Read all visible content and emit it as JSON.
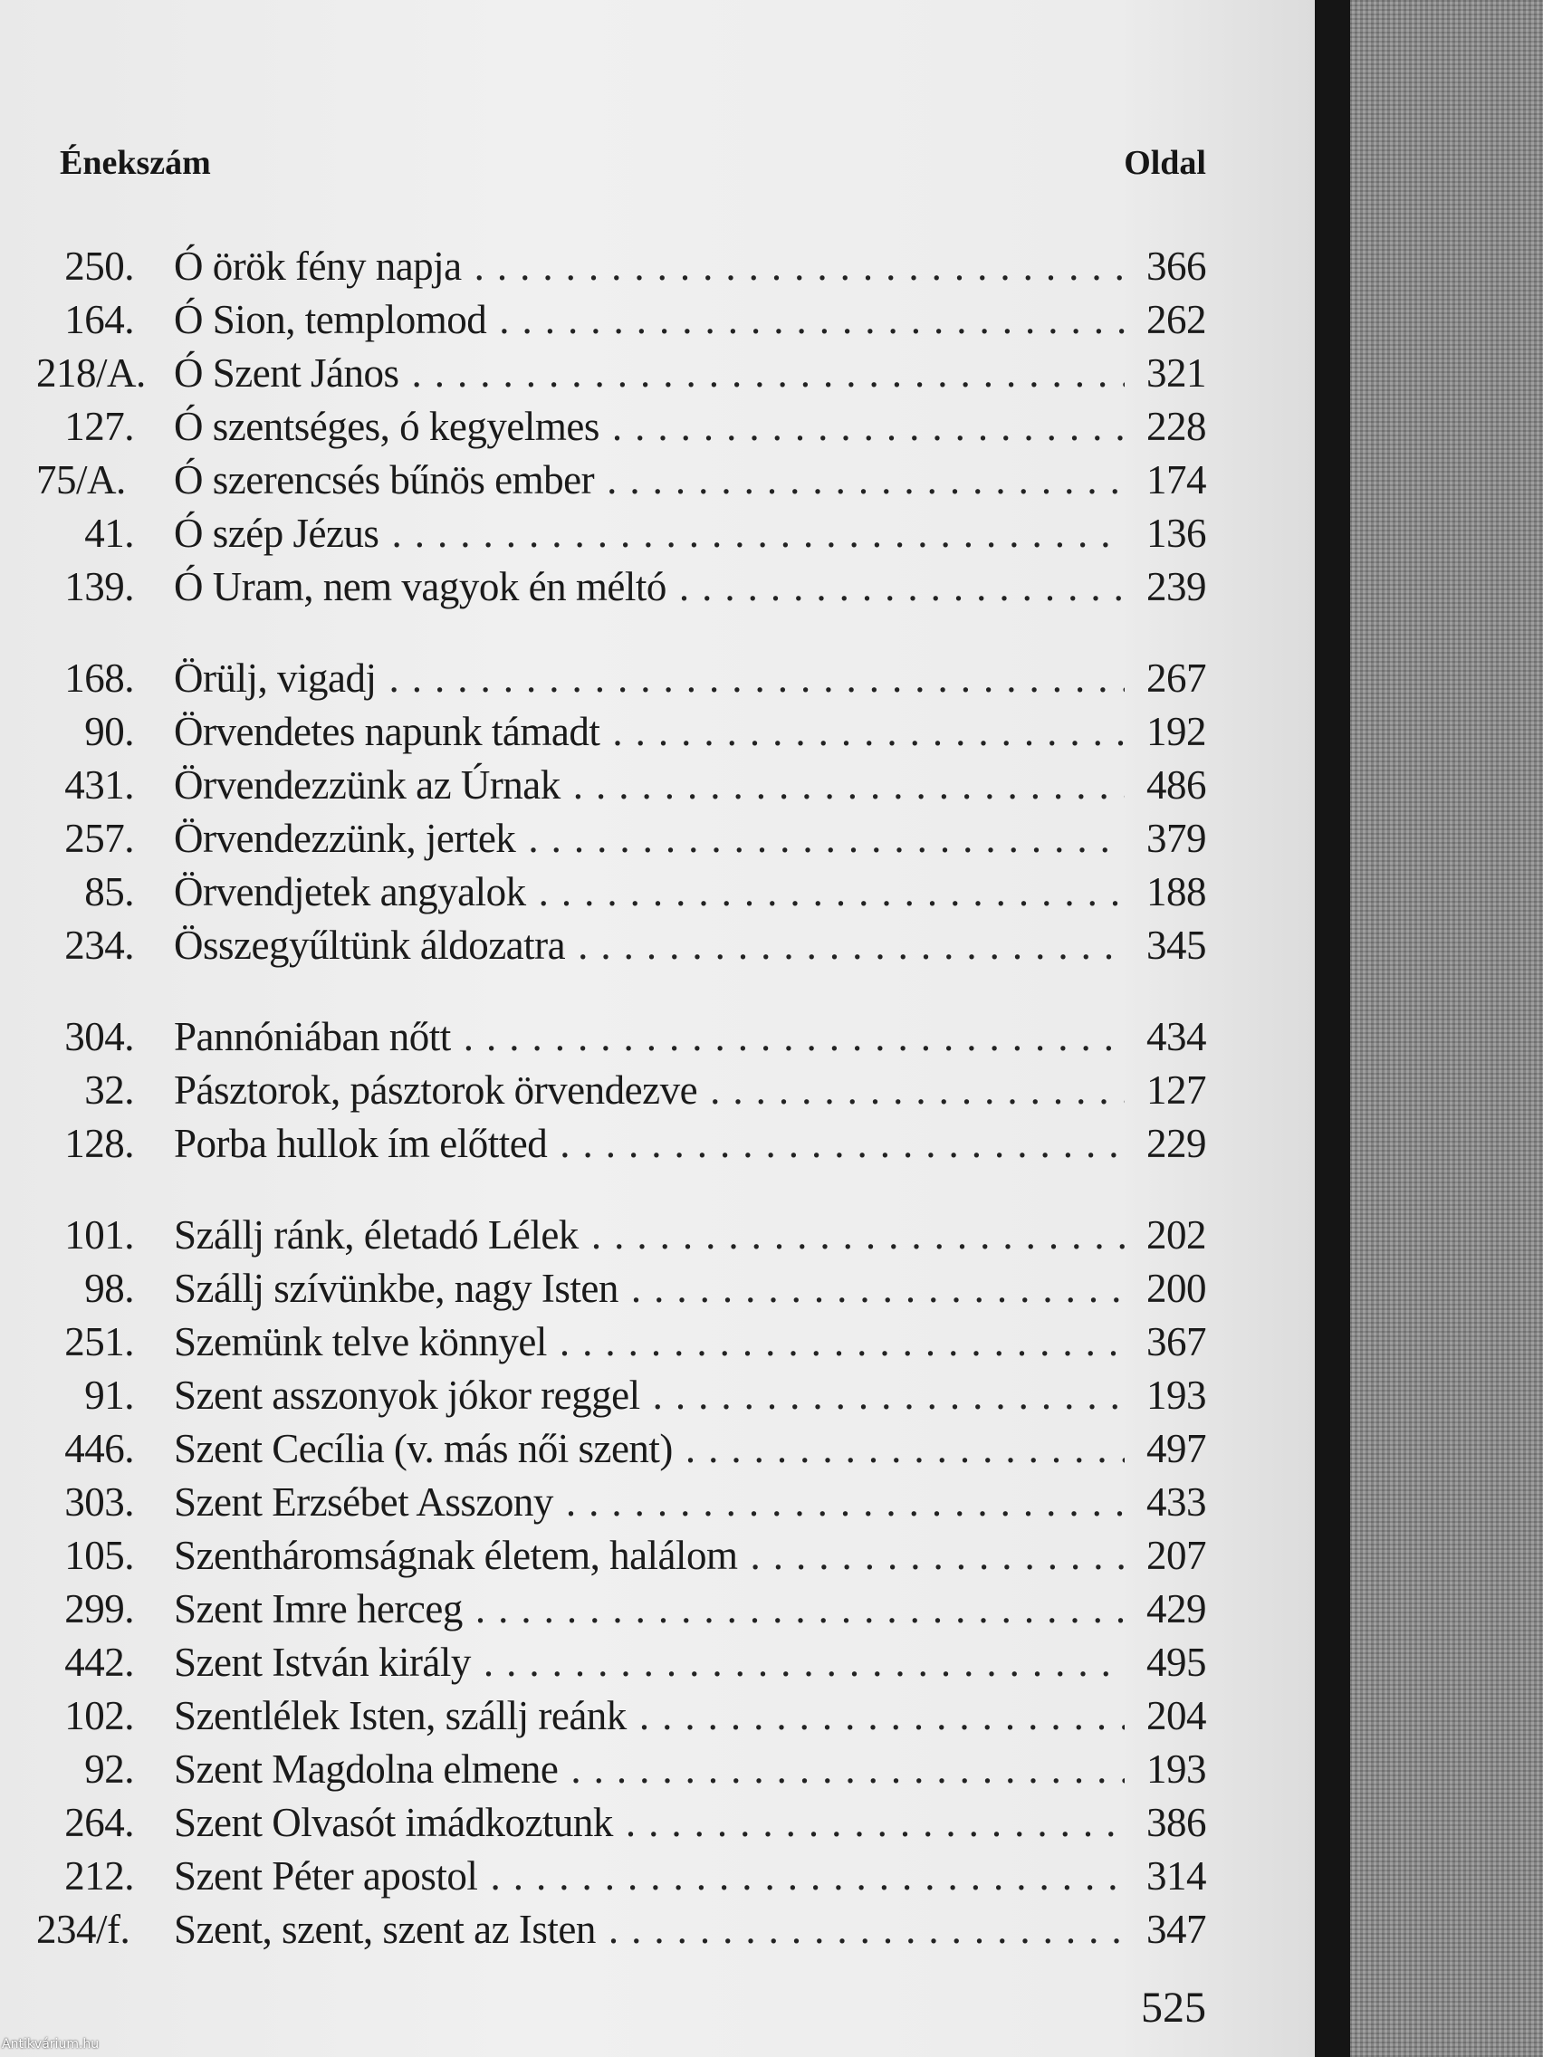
{
  "header": {
    "left": "Énekszám",
    "right": "Oldal"
  },
  "groups": [
    [
      {
        "num": "250.",
        "title": "Ó örök fény napja",
        "page": "366"
      },
      {
        "num": "164.",
        "title": "Ó Sion, templomod",
        "page": "262"
      },
      {
        "num": "218/A.",
        "title": "Ó Szent János",
        "page": "321"
      },
      {
        "num": "127.",
        "title": "Ó szentséges, ó kegyelmes",
        "page": "228"
      },
      {
        "num": "75/A.",
        "title": "Ó szerencsés bűnös ember",
        "page": "174"
      },
      {
        "num": "41.",
        "title": "Ó szép Jézus",
        "page": "136"
      },
      {
        "num": "139.",
        "title": "Ó Uram, nem vagyok én méltó",
        "page": "239"
      }
    ],
    [
      {
        "num": "168.",
        "title": "Örülj, vigadj",
        "page": "267"
      },
      {
        "num": "90.",
        "title": "Örvendetes napunk támadt",
        "page": "192"
      },
      {
        "num": "431.",
        "title": "Örvendezzünk az Úrnak",
        "page": "486"
      },
      {
        "num": "257.",
        "title": "Örvendezzünk, jertek",
        "page": "379"
      },
      {
        "num": "85.",
        "title": "Örvendjetek angyalok",
        "page": "188"
      },
      {
        "num": "234.",
        "title": "Összegyűltünk áldozatra",
        "page": "345"
      }
    ],
    [
      {
        "num": "304.",
        "title": "Pannóniában nőtt",
        "page": "434"
      },
      {
        "num": "32.",
        "title": "Pásztorok, pásztorok örvendezve",
        "page": "127"
      },
      {
        "num": "128.",
        "title": "Porba hullok ím előtted",
        "page": "229"
      }
    ],
    [
      {
        "num": "101.",
        "title": "Szállj ránk, életadó Lélek",
        "page": "202"
      },
      {
        "num": "98.",
        "title": "Szállj szívünkbe, nagy Isten",
        "page": "200"
      },
      {
        "num": "251.",
        "title": "Szemünk telve könnyel",
        "page": "367"
      },
      {
        "num": "91.",
        "title": "Szent asszonyok jókor reggel",
        "page": "193"
      },
      {
        "num": "446.",
        "title": "Szent Cecília (v. más női szent)",
        "page": "497"
      },
      {
        "num": "303.",
        "title": "Szent Erzsébet Asszony",
        "page": "433"
      },
      {
        "num": "105.",
        "title": "Szentháromságnak életem, halálom",
        "page": "207"
      },
      {
        "num": "299.",
        "title": "Szent Imre herceg",
        "page": "429"
      },
      {
        "num": "442.",
        "title": "Szent István király",
        "page": "495"
      },
      {
        "num": "102.",
        "title": "Szentlélek Isten, szállj reánk",
        "page": "204"
      },
      {
        "num": "92.",
        "title": "Szent Magdolna elmene",
        "page": "193"
      },
      {
        "num": "264.",
        "title": "Szent Olvasót imádkoztunk",
        "page": "386"
      },
      {
        "num": "212.",
        "title": "Szent Péter apostol",
        "page": "314"
      },
      {
        "num": "234/f.",
        "title": "Szent, szent, szent az Isten",
        "page": "347"
      }
    ]
  ],
  "folio": "525",
  "watermark": "Antikvárium.hu"
}
